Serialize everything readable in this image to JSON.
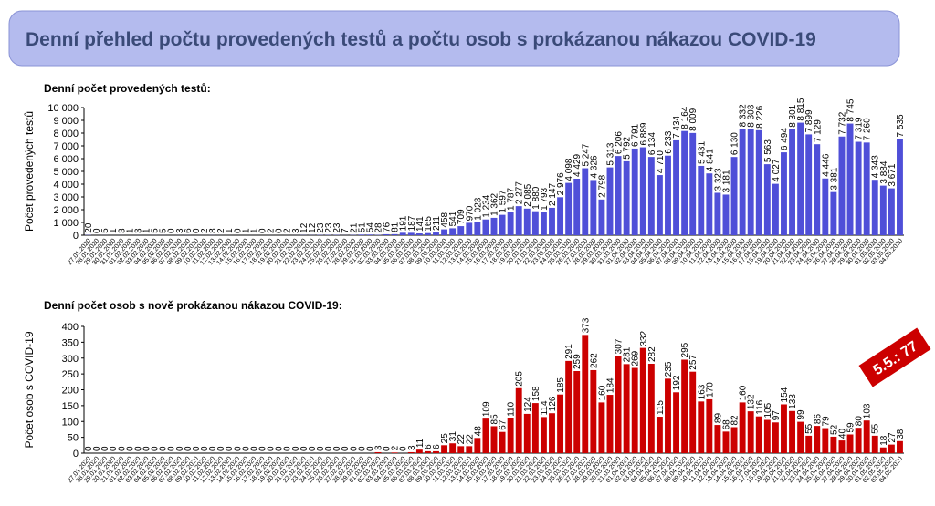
{
  "header": {
    "title": "Denní přehled počtu provedených testů a počtu osob s prokázanou nákazou COVID-19"
  },
  "chart_data": [
    {
      "type": "bar",
      "title": "Denní počet provedených testů:",
      "y_label": "Počet provedených testů",
      "color": "#4f4fd8",
      "categories": [
        "27.01.2020",
        "28.01.2020",
        "29.01.2020",
        "30.01.2020",
        "31.01.2020",
        "01.02.2020",
        "02.02.2020",
        "03.02.2020",
        "04.02.2020",
        "05.02.2020",
        "06.02.2020",
        "07.02.2020",
        "08.02.2020",
        "09.02.2020",
        "10.02.2020",
        "11.02.2020",
        "12.02.2020",
        "13.02.2020",
        "14.02.2020",
        "15.02.2020",
        "16.02.2020",
        "17.02.2020",
        "18.02.2020",
        "19.02.2020",
        "20.02.2020",
        "21.02.2020",
        "22.02.2020",
        "23.02.2020",
        "24.02.2020",
        "25.02.2020",
        "26.02.2020",
        "27.02.2020",
        "28.02.2020",
        "29.02.2020",
        "01.03.2020",
        "02.03.2020",
        "03.03.2020",
        "04.03.2020",
        "05.03.2020",
        "06.03.2020",
        "07.03.2020",
        "08.03.2020",
        "09.03.2020",
        "10.03.2020",
        "11.03.2020",
        "12.03.2020",
        "13.03.2020",
        "14.03.2020",
        "15.03.2020",
        "16.03.2020",
        "17.03.2020",
        "18.03.2020",
        "19.03.2020",
        "20.03.2020",
        "21.03.2020",
        "22.03.2020",
        "23.03.2020",
        "24.03.2020",
        "25.03.2020",
        "26.03.2020",
        "27.03.2020",
        "28.03.2020",
        "29.03.2020",
        "30.03.2020",
        "31.03.2020",
        "01.04.2020",
        "02.04.2020",
        "03.04.2020",
        "04.04.2020",
        "05.04.2020",
        "06.04.2020",
        "07.04.2020",
        "08.04.2020",
        "09.04.2020",
        "10.04.2020",
        "11.04.2020",
        "12.04.2020",
        "13.04.2020",
        "14.04.2020",
        "15.04.2020",
        "16.04.2020",
        "17.04.2020",
        "18.04.2020",
        "19.04.2020",
        "20.04.2020",
        "21.04.2020",
        "22.04.2020",
        "23.04.2020",
        "24.04.2020",
        "25.04.2020",
        "26.04.2020",
        "27.04.2020",
        "28.04.2020",
        "29.04.2020",
        "30.04.2020",
        "01.05.2020",
        "02.05.2020",
        "03.05.2020",
        "04.05.2020"
      ],
      "values": [
        20,
        0,
        5,
        1,
        3,
        1,
        3,
        1,
        5,
        5,
        0,
        3,
        6,
        0,
        2,
        8,
        2,
        1,
        0,
        1,
        1,
        0,
        2,
        0,
        2,
        3,
        12,
        12,
        23,
        23,
        23,
        7,
        21,
        51,
        54,
        28,
        76,
        81,
        191,
        187,
        141,
        165,
        211,
        458,
        541,
        709,
        970,
        1023,
        1234,
        1362,
        1597,
        1787,
        2277,
        2085,
        1880,
        1793,
        2147,
        2976,
        4098,
        4429,
        5247,
        4326,
        2798,
        5313,
        6206,
        5792,
        6791,
        6889,
        6134,
        4710,
        6233,
        7434,
        8164,
        8009,
        5431,
        4841,
        3323,
        3181,
        6130,
        8332,
        8303,
        8226,
        5563,
        4027,
        6494,
        8301,
        8815,
        7899,
        7129,
        4446,
        3381,
        7732,
        8745,
        7319,
        7260,
        4343,
        3884,
        3671,
        7535
      ],
      "value_labels": [
        "20",
        "0",
        "5",
        "1",
        "3",
        "1",
        "3",
        "1",
        "5",
        "5",
        "0",
        "3",
        "6",
        "0",
        "2",
        "8",
        "2",
        "1",
        "0",
        "1",
        "1",
        "0",
        "2",
        "0",
        "2",
        "3",
        "12",
        "12",
        "23",
        "23",
        "23",
        "7",
        "21",
        "51",
        "54",
        "28",
        "76",
        "81",
        "191",
        "187",
        "141",
        "165",
        "211",
        "458",
        "541",
        "709",
        "970",
        "1 023",
        "1 234",
        "1 362",
        "1 597",
        "1 787",
        "2 277",
        "2 085",
        "1 880",
        "1 793",
        "2 147",
        "2 976",
        "4 098",
        "4 429",
        "5 247",
        "4 326",
        "2 798",
        "5 313",
        "6 206",
        "5 792",
        "6 791",
        "6 889",
        "6 134",
        "4 710",
        "6 233",
        "7 434",
        "8 164",
        "8 009",
        "5 431",
        "4 841",
        "3 323",
        "3 181",
        "6 130",
        "8 332",
        "8 303",
        "8 226",
        "5 563",
        "4 027",
        "6 494",
        "8 301",
        "8 815",
        "7 899",
        "7 129",
        "4 446",
        "3 381",
        "7 732",
        "8 745",
        "7 319",
        "7 260",
        "4 343",
        "3 884",
        "3 671",
        "7 535"
      ],
      "ylim": [
        0,
        10000
      ],
      "yticks": [
        0,
        {
          "value": 1000,
          "label": "1 000"
        },
        {
          "value": 2000,
          "label": "2 000"
        },
        {
          "value": 3000,
          "label": "3 000"
        },
        {
          "value": 4000,
          "label": "4 000"
        },
        {
          "value": 5000,
          "label": "5 000"
        },
        {
          "value": 6000,
          "label": "6 000"
        },
        {
          "value": 7000,
          "label": "7 000"
        },
        {
          "value": 8000,
          "label": "8 000"
        },
        {
          "value": 9000,
          "label": "9 000"
        },
        {
          "value": 10000,
          "label": "10 000"
        }
      ]
    },
    {
      "type": "bar",
      "title": "Denní počet osob s nově prokázanou nákazou COVID-19:",
      "y_label": "Počet osob s COVID-19",
      "color": "#cc0000",
      "annotation": "5.5.: 77",
      "categories": [
        "27.01.2020",
        "28.01.2020",
        "29.01.2020",
        "30.01.2020",
        "31.01.2020",
        "01.02.2020",
        "02.02.2020",
        "03.02.2020",
        "04.02.2020",
        "05.02.2020",
        "06.02.2020",
        "07.02.2020",
        "08.02.2020",
        "09.02.2020",
        "10.02.2020",
        "11.02.2020",
        "12.02.2020",
        "13.02.2020",
        "14.02.2020",
        "15.02.2020",
        "16.02.2020",
        "17.02.2020",
        "18.02.2020",
        "19.02.2020",
        "20.02.2020",
        "21.02.2020",
        "22.02.2020",
        "23.02.2020",
        "24.02.2020",
        "25.02.2020",
        "26.02.2020",
        "27.02.2020",
        "28.02.2020",
        "29.02.2020",
        "01.03.2020",
        "02.03.2020",
        "03.03.2020",
        "04.03.2020",
        "05.03.2020",
        "06.03.2020",
        "07.03.2020",
        "08.03.2020",
        "09.03.2020",
        "10.03.2020",
        "11.03.2020",
        "12.03.2020",
        "13.03.2020",
        "14.03.2020",
        "15.03.2020",
        "16.03.2020",
        "17.03.2020",
        "18.03.2020",
        "19.03.2020",
        "20.03.2020",
        "21.03.2020",
        "22.03.2020",
        "23.03.2020",
        "24.03.2020",
        "25.03.2020",
        "26.03.2020",
        "27.03.2020",
        "28.03.2020",
        "29.03.2020",
        "30.03.2020",
        "31.03.2020",
        "01.04.2020",
        "02.04.2020",
        "03.04.2020",
        "04.04.2020",
        "05.04.2020",
        "06.04.2020",
        "07.04.2020",
        "08.04.2020",
        "09.04.2020",
        "10.04.2020",
        "11.04.2020",
        "12.04.2020",
        "13.04.2020",
        "14.04.2020",
        "15.04.2020",
        "16.04.2020",
        "17.04.2020",
        "18.04.2020",
        "19.04.2020",
        "20.04.2020",
        "21.04.2020",
        "22.04.2020",
        "23.04.2020",
        "24.04.2020",
        "25.04.2020",
        "26.04.2020",
        "27.04.2020",
        "28.04.2020",
        "29.04.2020",
        "30.04.2020",
        "01.05.2020",
        "02.05.2020",
        "03.05.2020",
        "04.05.2020"
      ],
      "values": [
        0,
        0,
        0,
        0,
        0,
        0,
        0,
        0,
        0,
        0,
        0,
        0,
        0,
        0,
        0,
        0,
        0,
        0,
        0,
        0,
        0,
        0,
        0,
        0,
        0,
        0,
        0,
        0,
        0,
        0,
        0,
        0,
        0,
        0,
        0,
        3,
        0,
        2,
        0,
        3,
        11,
        6,
        6,
        25,
        31,
        22,
        22,
        48,
        109,
        85,
        67,
        110,
        205,
        124,
        158,
        114,
        126,
        185,
        291,
        259,
        373,
        262,
        160,
        184,
        307,
        281,
        269,
        332,
        282,
        115,
        235,
        192,
        295,
        257,
        163,
        170,
        89,
        68,
        82,
        160,
        132,
        116,
        105,
        97,
        154,
        133,
        99,
        55,
        86,
        79,
        52,
        40,
        59,
        80,
        103,
        55,
        18,
        27,
        38
      ],
      "ylim": [
        0,
        400
      ],
      "yticks": [
        0,
        50,
        100,
        150,
        200,
        250,
        300,
        350,
        400
      ]
    }
  ]
}
